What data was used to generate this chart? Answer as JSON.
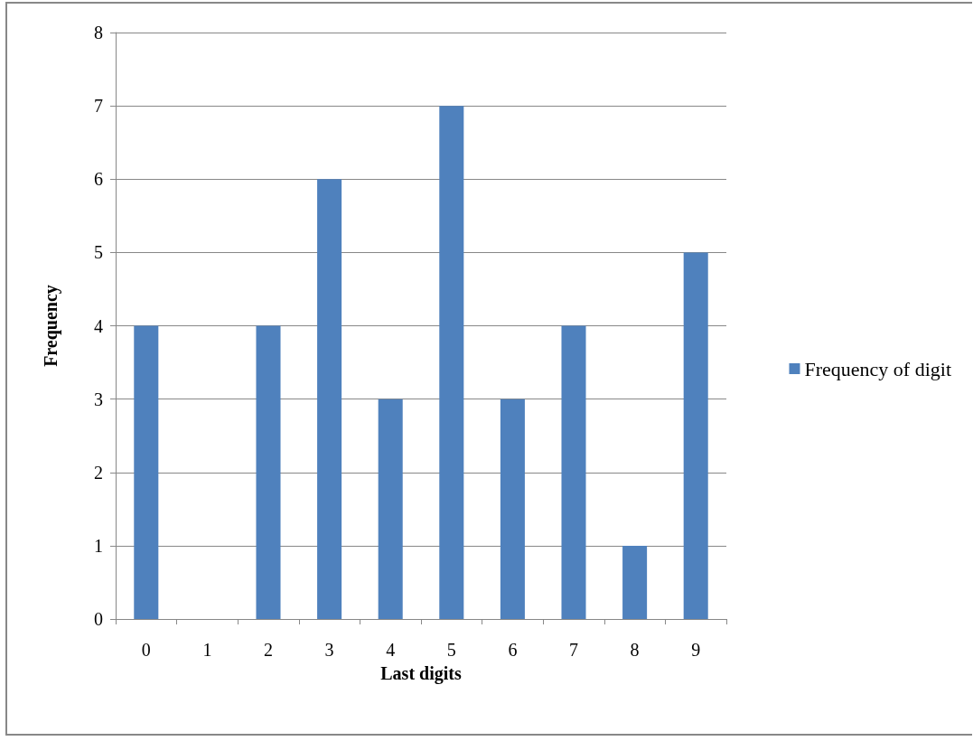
{
  "chart_data": {
    "type": "bar",
    "xlabel": "Last digits",
    "ylabel": "Frequency",
    "categories": [
      "0",
      "1",
      "2",
      "3",
      "4",
      "5",
      "6",
      "7",
      "8",
      "9"
    ],
    "series": [
      {
        "name": "Frequency of digit",
        "color": "#4f81bd",
        "values": [
          4,
          0,
          4,
          6,
          3,
          7,
          3,
          4,
          1,
          5
        ]
      }
    ],
    "ylim": [
      0,
      8
    ],
    "yticks": [
      0,
      1,
      2,
      3,
      4,
      5,
      6,
      7,
      8
    ],
    "grid": "y",
    "legend": "right"
  }
}
